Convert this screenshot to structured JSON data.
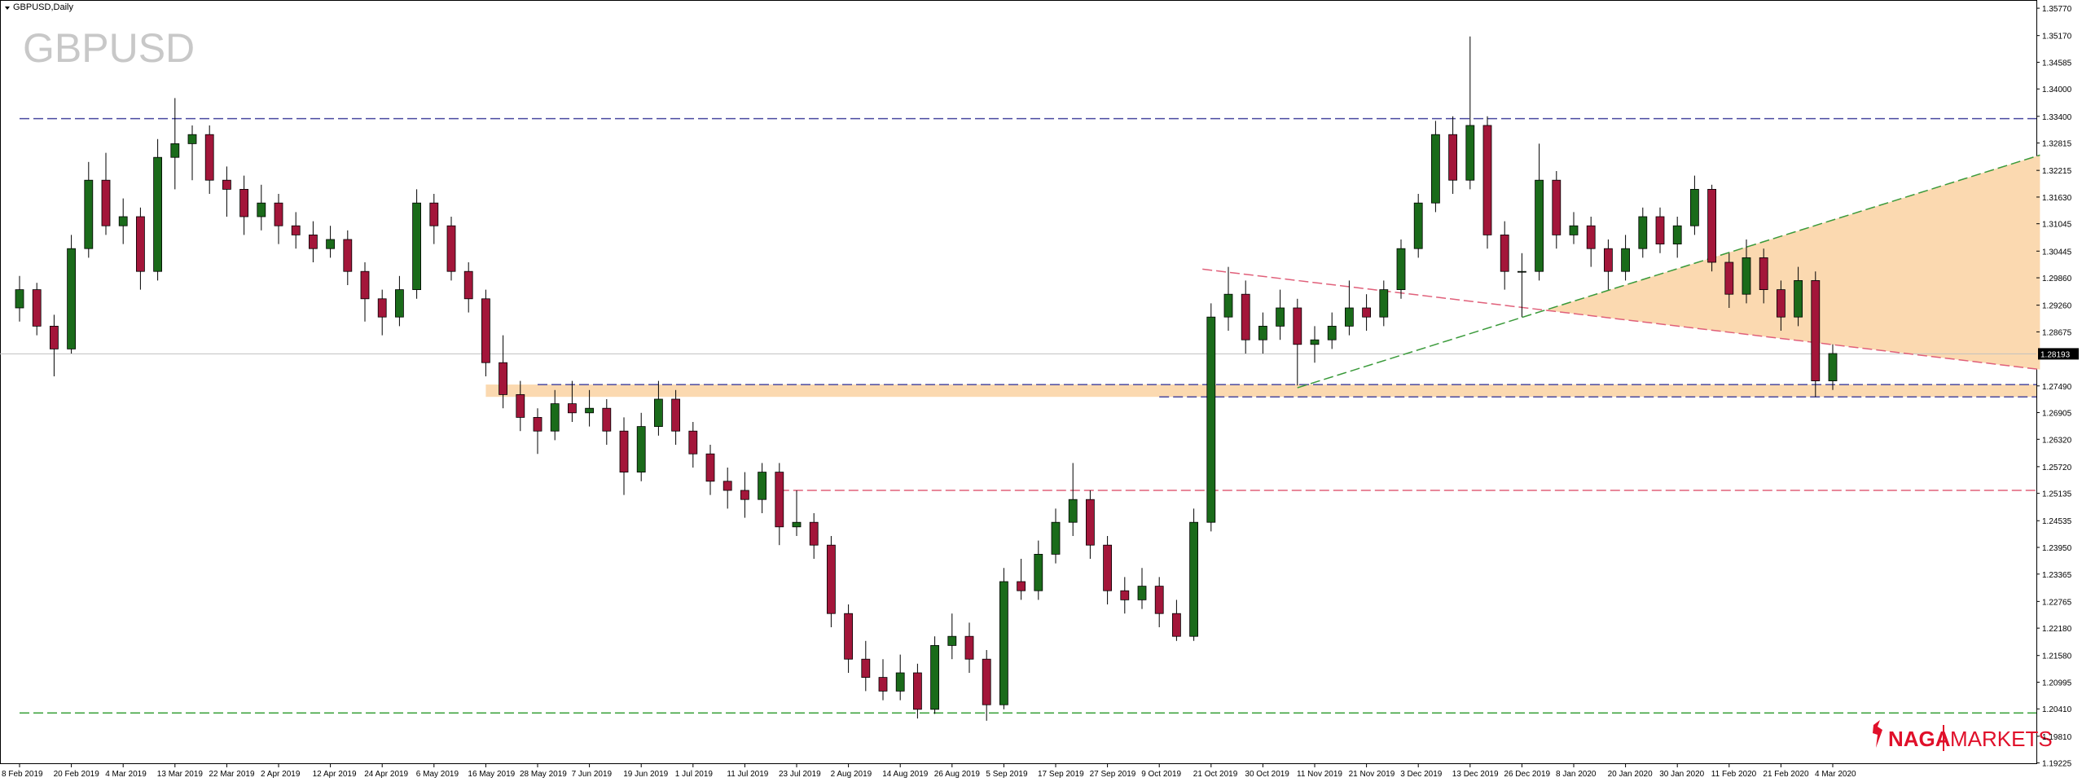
{
  "chart_data": {
    "type": "candlestick",
    "title": "GBPUSD,Daily",
    "watermark": "GBPUSD",
    "categories": [
      "8 Feb 2019",
      null,
      null,
      "20 Feb 2019",
      null,
      null,
      "4 Mar 2019",
      null,
      null,
      "13 Mar 2019",
      null,
      null,
      "22 Mar 2019",
      null,
      null,
      "2 Apr 2019",
      null,
      null,
      "12 Apr 2019",
      null,
      null,
      "24 Apr 2019",
      null,
      null,
      "6 May 2019",
      null,
      null,
      "16 May 2019",
      null,
      null,
      "28 May 2019",
      null,
      null,
      "7 Jun 2019",
      null,
      null,
      "19 Jun 2019",
      null,
      null,
      "1 Jul 2019",
      null,
      null,
      "11 Jul 2019",
      null,
      null,
      "23 Jul 2019",
      null,
      null,
      "2 Aug 2019",
      null,
      null,
      "14 Aug 2019",
      null,
      null,
      "26 Aug 2019",
      null,
      null,
      "5 Sep 2019",
      null,
      null,
      "17 Sep 2019",
      null,
      null,
      "27 Sep 2019",
      null,
      null,
      "9 Oct 2019",
      null,
      null,
      "21 Oct 2019",
      null,
      null,
      "30 Oct 2019",
      null,
      null,
      "11 Nov 2019",
      null,
      null,
      "21 Nov 2019",
      null,
      null,
      "3 Dec 2019",
      null,
      null,
      "13 Dec 2019",
      null,
      null,
      "26 Dec 2019",
      null,
      null,
      "8 Jan 2020",
      null,
      null,
      "20 Jan 2020",
      null,
      null,
      "30 Jan 2020",
      null,
      null,
      "11 Feb 2020",
      null,
      null,
      "21 Feb 2020",
      null,
      null,
      "4 Mar 2020"
    ],
    "ohlc": [
      [
        1.292,
        1.299,
        1.289,
        1.296
      ],
      [
        1.296,
        1.2975,
        1.286,
        1.288
      ],
      [
        1.288,
        1.2905,
        1.277,
        1.283
      ],
      [
        1.283,
        1.308,
        1.282,
        1.305
      ],
      [
        1.305,
        1.324,
        1.303,
        1.32
      ],
      [
        1.32,
        1.326,
        1.308,
        1.31
      ],
      [
        1.31,
        1.316,
        1.306,
        1.312
      ],
      [
        1.312,
        1.314,
        1.296,
        1.3
      ],
      [
        1.3,
        1.329,
        1.298,
        1.325
      ],
      [
        1.325,
        1.338,
        1.318,
        1.328
      ],
      [
        1.328,
        1.332,
        1.32,
        1.33
      ],
      [
        1.33,
        1.332,
        1.317,
        1.32
      ],
      [
        1.32,
        1.323,
        1.312,
        1.318
      ],
      [
        1.318,
        1.321,
        1.308,
        1.312
      ],
      [
        1.312,
        1.319,
        1.309,
        1.315
      ],
      [
        1.315,
        1.317,
        1.306,
        1.31
      ],
      [
        1.31,
        1.313,
        1.305,
        1.308
      ],
      [
        1.308,
        1.311,
        1.302,
        1.305
      ],
      [
        1.305,
        1.31,
        1.303,
        1.307
      ],
      [
        1.307,
        1.309,
        1.297,
        1.3
      ],
      [
        1.3,
        1.302,
        1.289,
        1.294
      ],
      [
        1.294,
        1.296,
        1.286,
        1.29
      ],
      [
        1.29,
        1.299,
        1.288,
        1.296
      ],
      [
        1.296,
        1.318,
        1.294,
        1.315
      ],
      [
        1.315,
        1.317,
        1.306,
        1.31
      ],
      [
        1.31,
        1.312,
        1.298,
        1.3
      ],
      [
        1.3,
        1.302,
        1.291,
        1.294
      ],
      [
        1.294,
        1.296,
        1.277,
        1.28
      ],
      [
        1.28,
        1.286,
        1.27,
        1.273
      ],
      [
        1.273,
        1.276,
        1.265,
        1.268
      ],
      [
        1.268,
        1.27,
        1.26,
        1.265
      ],
      [
        1.265,
        1.274,
        1.263,
        1.271
      ],
      [
        1.271,
        1.276,
        1.267,
        1.269
      ],
      [
        1.269,
        1.274,
        1.266,
        1.27
      ],
      [
        1.27,
        1.272,
        1.262,
        1.265
      ],
      [
        1.265,
        1.268,
        1.251,
        1.256
      ],
      [
        1.256,
        1.269,
        1.254,
        1.266
      ],
      [
        1.266,
        1.276,
        1.264,
        1.272
      ],
      [
        1.272,
        1.274,
        1.262,
        1.265
      ],
      [
        1.265,
        1.267,
        1.257,
        1.26
      ],
      [
        1.26,
        1.262,
        1.251,
        1.254
      ],
      [
        1.254,
        1.257,
        1.248,
        1.252
      ],
      [
        1.252,
        1.256,
        1.246,
        1.25
      ],
      [
        1.25,
        1.258,
        1.247,
        1.256
      ],
      [
        1.256,
        1.258,
        1.24,
        1.244
      ],
      [
        1.244,
        1.252,
        1.242,
        1.245
      ],
      [
        1.245,
        1.247,
        1.237,
        1.24
      ],
      [
        1.24,
        1.242,
        1.222,
        1.225
      ],
      [
        1.225,
        1.227,
        1.212,
        1.215
      ],
      [
        1.215,
        1.219,
        1.208,
        1.211
      ],
      [
        1.211,
        1.215,
        1.206,
        1.208
      ],
      [
        1.208,
        1.216,
        1.206,
        1.212
      ],
      [
        1.212,
        1.214,
        1.202,
        1.204
      ],
      [
        1.204,
        1.22,
        1.203,
        1.218
      ],
      [
        1.218,
        1.225,
        1.215,
        1.22
      ],
      [
        1.22,
        1.223,
        1.212,
        1.215
      ],
      [
        1.215,
        1.217,
        1.2015,
        1.205
      ],
      [
        1.205,
        1.235,
        1.204,
        1.232
      ],
      [
        1.232,
        1.237,
        1.228,
        1.23
      ],
      [
        1.23,
        1.241,
        1.228,
        1.238
      ],
      [
        1.238,
        1.248,
        1.236,
        1.245
      ],
      [
        1.245,
        1.258,
        1.242,
        1.25
      ],
      [
        1.25,
        1.252,
        1.237,
        1.24
      ],
      [
        1.24,
        1.242,
        1.227,
        1.23
      ],
      [
        1.23,
        1.233,
        1.225,
        1.228
      ],
      [
        1.228,
        1.235,
        1.226,
        1.231
      ],
      [
        1.231,
        1.233,
        1.222,
        1.225
      ],
      [
        1.225,
        1.228,
        1.219,
        1.22
      ],
      [
        1.22,
        1.248,
        1.219,
        1.245
      ],
      [
        1.245,
        1.293,
        1.243,
        1.29
      ],
      [
        1.29,
        1.301,
        1.287,
        1.295
      ],
      [
        1.295,
        1.298,
        1.282,
        1.285
      ],
      [
        1.285,
        1.291,
        1.282,
        1.288
      ],
      [
        1.288,
        1.296,
        1.285,
        1.292
      ],
      [
        1.292,
        1.294,
        1.275,
        1.284
      ],
      [
        1.284,
        1.288,
        1.28,
        1.285
      ],
      [
        1.285,
        1.291,
        1.283,
        1.288
      ],
      [
        1.288,
        1.298,
        1.286,
        1.292
      ],
      [
        1.292,
        1.295,
        1.287,
        1.29
      ],
      [
        1.29,
        1.298,
        1.288,
        1.296
      ],
      [
        1.296,
        1.307,
        1.294,
        1.305
      ],
      [
        1.305,
        1.317,
        1.303,
        1.315
      ],
      [
        1.315,
        1.333,
        1.313,
        1.33
      ],
      [
        1.33,
        1.334,
        1.317,
        1.32
      ],
      [
        1.32,
        1.3515,
        1.318,
        1.332
      ],
      [
        1.332,
        1.334,
        1.305,
        1.308
      ],
      [
        1.308,
        1.311,
        1.296,
        1.3
      ],
      [
        1.3,
        1.304,
        1.29,
        1.3
      ],
      [
        1.3,
        1.328,
        1.298,
        1.32
      ],
      [
        1.32,
        1.322,
        1.305,
        1.308
      ],
      [
        1.308,
        1.313,
        1.306,
        1.31
      ],
      [
        1.31,
        1.312,
        1.301,
        1.305
      ],
      [
        1.305,
        1.307,
        1.296,
        1.3
      ],
      [
        1.3,
        1.308,
        1.298,
        1.305
      ],
      [
        1.305,
        1.314,
        1.303,
        1.312
      ],
      [
        1.312,
        1.314,
        1.304,
        1.306
      ],
      [
        1.306,
        1.312,
        1.303,
        1.31
      ],
      [
        1.31,
        1.321,
        1.308,
        1.318
      ],
      [
        1.318,
        1.319,
        1.3,
        1.302
      ],
      [
        1.302,
        1.304,
        1.292,
        1.295
      ],
      [
        1.295,
        1.307,
        1.293,
        1.303
      ],
      [
        1.303,
        1.305,
        1.293,
        1.296
      ],
      [
        1.296,
        1.298,
        1.287,
        1.29
      ],
      [
        1.29,
        1.301,
        1.288,
        1.298
      ],
      [
        1.298,
        1.3,
        1.2725,
        1.276
      ],
      [
        1.276,
        1.284,
        1.274,
        1.282
      ]
    ],
    "up_color": "#1a6b1a",
    "down_color": "#a3163a",
    "ylim": [
      1.192,
      1.3595
    ],
    "yticks": [
      {
        "value": 1.3577,
        "label": "1.35770"
      },
      {
        "value": 1.3517,
        "label": "1.35170"
      },
      1.34585,
      {
        "value": 1.34,
        "label": "1.34000"
      },
      {
        "value": 1.334,
        "label": "1.33400"
      },
      1.32815,
      1.32215,
      {
        "value": 1.3163,
        "label": "1.31630"
      },
      1.31045,
      1.30445,
      {
        "value": 1.2986,
        "label": "1.29860"
      },
      {
        "value": 1.2926,
        "label": "1.29260"
      },
      1.28675,
      {
        "value": 1.2749,
        "label": "1.27490"
      },
      1.26905,
      {
        "value": 1.2632,
        "label": "1.26320"
      },
      {
        "value": 1.2572,
        "label": "1.25720"
      },
      1.25135,
      1.24535,
      {
        "value": 1.2395,
        "label": "1.23950"
      },
      1.23365,
      1.22765,
      {
        "value": 1.2218,
        "label": "1.22180"
      },
      {
        "value": 1.2158,
        "label": "1.21580"
      },
      1.20995,
      {
        "value": 1.2041,
        "label": "1.20410"
      },
      {
        "value": 1.1981,
        "label": "1.19810"
      },
      1.19225
    ],
    "current_price": 1.28193,
    "hlines": [
      {
        "value": 1.3335,
        "color": "#4a4aa0"
      },
      {
        "value": 1.2752,
        "color": "#4a4aa0"
      },
      {
        "value": 1.2725,
        "color": "#4a4aa0"
      },
      {
        "value": 1.252,
        "color": "#e0607a"
      },
      {
        "value": 1.2032,
        "color": "#3aa03a"
      }
    ],
    "zone": {
      "low": 1.2725,
      "high": 1.2752,
      "color": "#fbd9b0"
    },
    "trendlines": [
      {
        "x": [
          74,
          117
        ],
        "y": [
          1.2745,
          1.3255
        ],
        "color": "#3a9a3a"
      },
      {
        "x": [
          68.5,
          117
        ],
        "y": [
          1.3005,
          1.2785
        ],
        "color": "#e0607a"
      }
    ],
    "logo": {
      "brand": "NAGA",
      "suffix": "MARKETS"
    }
  }
}
